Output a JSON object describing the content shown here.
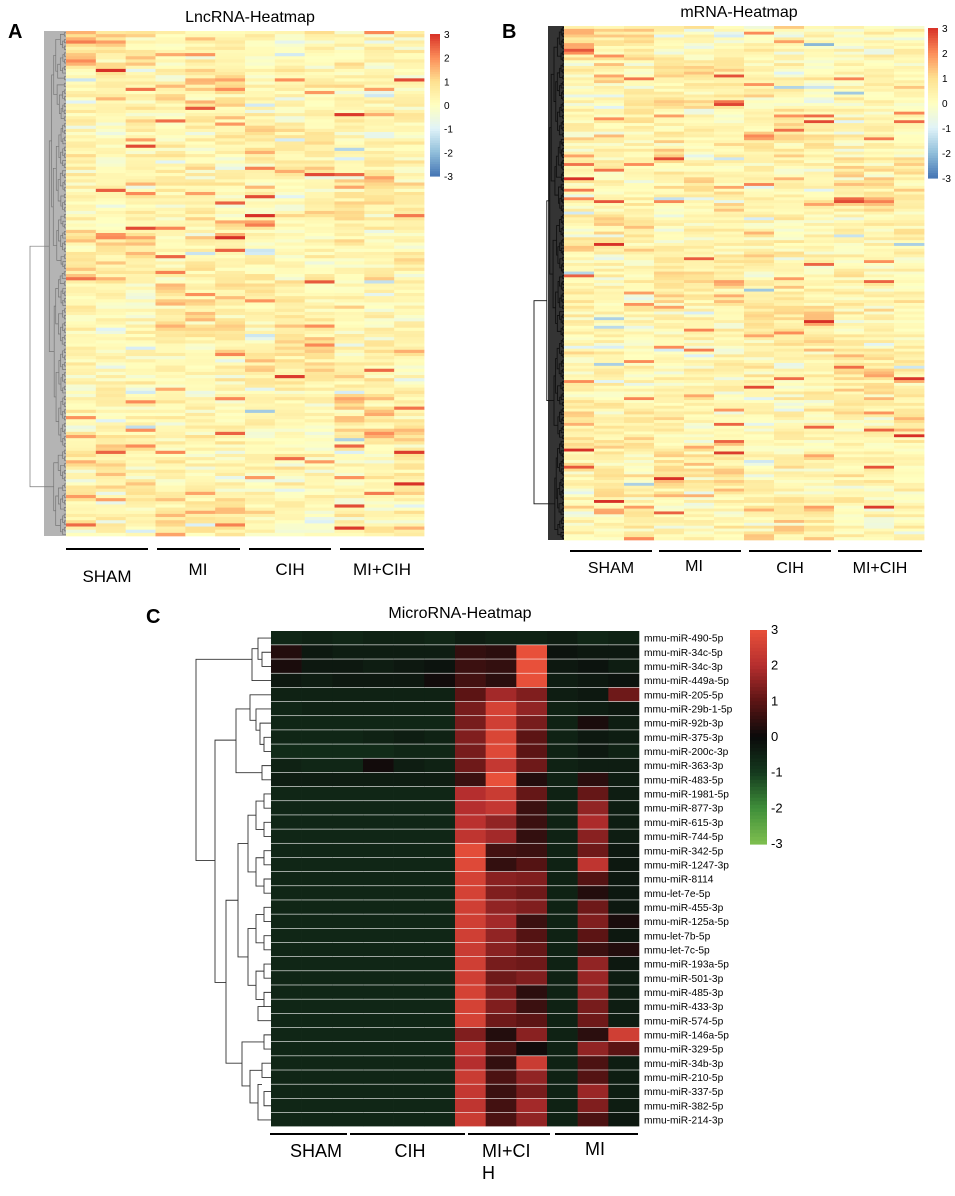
{
  "colors": {
    "diverging": [
      "#4575b4",
      "#91bfdb",
      "#e0f3f8",
      "#ffffbf",
      "#fee090",
      "#fc8d59",
      "#d73027"
    ],
    "microrna": [
      "#7fbf4f",
      "#3f8f3a",
      "#14391e",
      "#0a0a0a",
      "#5c1414",
      "#b52e2e",
      "#e8503a"
    ],
    "axis_line": "#000000",
    "dendrogram_gray": "#777777",
    "dendrogram_dark": "#111111"
  },
  "panels": {
    "A": {
      "letter": "A",
      "title": "LncRNA-Heatmap",
      "groups": [
        "SHAM",
        "MI",
        "CIH",
        "MI+CIH"
      ],
      "colorbar_ticks": [
        "3",
        "2",
        "1",
        "0",
        "-1",
        "-2",
        "-3"
      ]
    },
    "B": {
      "letter": "B",
      "title": "mRNA-Heatmap",
      "groups": [
        "SHAM",
        "MI",
        "CIH",
        "MI+CIH"
      ],
      "colorbar_ticks": [
        "3",
        "2",
        "1",
        "0",
        "-1",
        "-2",
        "-3"
      ]
    },
    "C": {
      "letter": "C",
      "title": "MicroRNA-Heatmap",
      "groups": [
        "SHAM",
        "CIH",
        "MI+CI\nH",
        "MI"
      ],
      "colorbar_ticks": [
        "3",
        "2",
        "1",
        "0",
        "-1",
        "-2",
        "-3"
      ]
    }
  },
  "chart_data": [
    {
      "type": "heatmap",
      "panel": "A",
      "title": "LncRNA-Heatmap",
      "columns": 12,
      "rows": 160,
      "column_groups": [
        {
          "name": "SHAM",
          "columns": 3
        },
        {
          "name": "MI",
          "columns": 3
        },
        {
          "name": "CIH",
          "columns": 3
        },
        {
          "name": "MI+CIH",
          "columns": 3
        }
      ],
      "color_range": [
        -3,
        3
      ],
      "row_labels": []
    },
    {
      "type": "heatmap",
      "panel": "B",
      "title": "mRNA-Heatmap",
      "columns": 12,
      "rows": 180,
      "column_groups": [
        {
          "name": "SHAM",
          "columns": 3
        },
        {
          "name": "MI",
          "columns": 3
        },
        {
          "name": "CIH",
          "columns": 3
        },
        {
          "name": "MI+CIH",
          "columns": 3
        }
      ],
      "color_range": [
        -3,
        3
      ],
      "row_labels": []
    },
    {
      "type": "heatmap",
      "panel": "C",
      "title": "MicroRNA-Heatmap",
      "color_range": [
        -3,
        3
      ],
      "column_groups": [
        {
          "name": "SHAM",
          "columns": 3
        },
        {
          "name": "CIH",
          "columns": 3
        },
        {
          "name": "MI+CIH",
          "columns": 3
        },
        {
          "name": "MI",
          "columns": 3
        }
      ],
      "row_labels": [
        "mmu-miR-490-5p",
        "mmu-miR-34c-5p",
        "mmu-miR-34c-3p",
        "mmu-miR-449a-5p",
        "mmu-miR-205-5p",
        "mmu-miR-29b-1-5p",
        "mmu-miR-92b-3p",
        "mmu-miR-375-3p",
        "mmu-miR-200c-3p",
        "mmu-miR-363-3p",
        "mmu-miR-483-5p",
        "mmu-miR-1981-5p",
        "mmu-miR-877-3p",
        "mmu-miR-615-3p",
        "mmu-miR-744-5p",
        "mmu-miR-342-5p",
        "mmu-miR-1247-3p",
        "mmu-miR-8114",
        "mmu-let-7e-5p",
        "mmu-miR-455-3p",
        "mmu-miR-125a-5p",
        "mmu-let-7b-5p",
        "mmu-let-7c-5p",
        "mmu-miR-193a-5p",
        "mmu-miR-501-3p",
        "mmu-miR-485-3p",
        "mmu-miR-433-3p",
        "mmu-miR-574-5p",
        "mmu-miR-146a-5p",
        "mmu-miR-329-5p",
        "mmu-miR-34b-3p",
        "mmu-miR-210-5p",
        "mmu-miR-337-5p",
        "mmu-miR-382-5p",
        "mmu-miR-214-3p"
      ],
      "values": [
        [
          -0.6,
          -0.5,
          -0.6,
          -0.5,
          -0.5,
          -0.6,
          -0.4,
          -0.5,
          -0.5,
          -0.4,
          -0.6,
          -0.5
        ],
        [
          0.3,
          -0.3,
          -0.4,
          -0.4,
          -0.4,
          -0.4,
          0.5,
          0.4,
          3.1,
          -0.2,
          -0.3,
          -0.3
        ],
        [
          0.2,
          -0.3,
          -0.3,
          -0.4,
          -0.3,
          -0.2,
          0.6,
          0.5,
          3.1,
          -0.3,
          -0.2,
          -0.4
        ],
        [
          -0.3,
          -0.4,
          -0.3,
          -0.3,
          -0.3,
          0.1,
          0.7,
          0.4,
          3.0,
          -0.4,
          -0.3,
          -0.2
        ],
        [
          -0.5,
          -0.5,
          -0.5,
          -0.5,
          -0.5,
          -0.5,
          1.0,
          1.8,
          1.4,
          -0.4,
          -0.3,
          1.2
        ],
        [
          -0.6,
          -0.5,
          -0.5,
          -0.5,
          -0.5,
          -0.5,
          1.3,
          2.6,
          1.6,
          -0.5,
          -0.4,
          -0.3
        ],
        [
          -0.6,
          -0.6,
          -0.6,
          -0.6,
          -0.6,
          -0.6,
          1.3,
          2.5,
          1.3,
          -0.5,
          0.2,
          -0.4
        ],
        [
          -0.6,
          -0.6,
          -0.6,
          -0.5,
          -0.4,
          -0.5,
          1.4,
          2.7,
          1.0,
          -0.5,
          -0.3,
          -0.4
        ],
        [
          -0.7,
          -0.7,
          -0.7,
          -0.7,
          -0.6,
          -0.6,
          1.3,
          2.8,
          1.0,
          -0.5,
          -0.3,
          -0.5
        ],
        [
          -0.5,
          -0.6,
          -0.6,
          0.1,
          -0.4,
          -0.5,
          1.2,
          2.3,
          1.2,
          -0.5,
          -0.4,
          -0.4
        ],
        [
          -0.4,
          -0.4,
          -0.4,
          -0.4,
          -0.4,
          -0.4,
          0.6,
          3.0,
          0.3,
          -0.5,
          0.4,
          -0.4
        ],
        [
          -0.6,
          -0.6,
          -0.6,
          -0.6,
          -0.6,
          -0.6,
          2.0,
          2.4,
          1.1,
          -0.5,
          1.1,
          -0.4
        ],
        [
          -0.6,
          -0.6,
          -0.6,
          -0.6,
          -0.6,
          -0.6,
          2.0,
          2.3,
          0.6,
          -0.5,
          1.6,
          -0.4
        ],
        [
          -0.6,
          -0.6,
          -0.6,
          -0.6,
          -0.6,
          -0.6,
          2.1,
          1.6,
          0.6,
          -0.5,
          1.9,
          -0.4
        ],
        [
          -0.6,
          -0.6,
          -0.6,
          -0.6,
          -0.6,
          -0.6,
          2.2,
          1.8,
          0.5,
          -0.5,
          1.5,
          -0.4
        ],
        [
          -0.6,
          -0.6,
          -0.6,
          -0.6,
          -0.6,
          -0.6,
          2.9,
          0.7,
          0.6,
          -0.5,
          1.2,
          -0.3
        ],
        [
          -0.6,
          -0.6,
          -0.6,
          -0.6,
          -0.6,
          -0.6,
          2.8,
          0.5,
          0.9,
          -0.5,
          2.2,
          -0.3
        ],
        [
          -0.6,
          -0.6,
          -0.6,
          -0.6,
          -0.6,
          -0.6,
          2.6,
          1.5,
          1.4,
          -0.5,
          0.9,
          -0.3
        ],
        [
          -0.6,
          -0.6,
          -0.6,
          -0.6,
          -0.6,
          -0.6,
          2.6,
          1.4,
          1.2,
          -0.5,
          0.3,
          -0.3
        ],
        [
          -0.6,
          -0.6,
          -0.6,
          -0.6,
          -0.6,
          -0.6,
          2.5,
          1.6,
          1.4,
          -0.5,
          1.2,
          -0.3
        ],
        [
          -0.6,
          -0.6,
          -0.6,
          -0.6,
          -0.6,
          -0.6,
          2.5,
          1.8,
          0.6,
          -0.5,
          1.4,
          0.2
        ],
        [
          -0.6,
          -0.6,
          -0.6,
          -0.6,
          -0.6,
          -0.6,
          2.5,
          1.6,
          0.9,
          -0.5,
          1.0,
          -0.3
        ],
        [
          -0.6,
          -0.6,
          -0.6,
          -0.6,
          -0.6,
          -0.6,
          2.4,
          1.5,
          1.1,
          -0.5,
          0.6,
          0.3
        ],
        [
          -0.6,
          -0.6,
          -0.6,
          -0.6,
          -0.6,
          -0.6,
          2.5,
          1.3,
          1.2,
          -0.5,
          1.6,
          -0.3
        ],
        [
          -0.6,
          -0.6,
          -0.6,
          -0.6,
          -0.6,
          -0.6,
          2.5,
          1.2,
          1.4,
          -0.5,
          1.7,
          -0.4
        ],
        [
          -0.6,
          -0.6,
          -0.6,
          -0.6,
          -0.6,
          -0.6,
          2.6,
          1.4,
          0.4,
          -0.5,
          1.6,
          -0.4
        ],
        [
          -0.6,
          -0.6,
          -0.6,
          -0.6,
          -0.6,
          -0.6,
          2.6,
          1.4,
          0.6,
          -0.5,
          1.3,
          -0.4
        ],
        [
          -0.6,
          -0.6,
          -0.6,
          -0.6,
          -0.6,
          -0.6,
          2.6,
          1.2,
          1.0,
          -0.5,
          1.2,
          -0.4
        ],
        [
          -0.6,
          -0.6,
          -0.6,
          -0.6,
          -0.6,
          -0.6,
          1.4,
          0.3,
          1.5,
          -0.5,
          0.4,
          2.5
        ],
        [
          -0.6,
          -0.6,
          -0.6,
          -0.6,
          -0.6,
          -0.6,
          2.2,
          0.8,
          0.1,
          -0.5,
          1.6,
          1.0
        ],
        [
          -0.6,
          -0.6,
          -0.6,
          -0.6,
          -0.6,
          -0.6,
          2.0,
          0.5,
          2.4,
          -0.5,
          0.8,
          -0.4
        ],
        [
          -0.6,
          -0.6,
          -0.6,
          -0.6,
          -0.6,
          -0.6,
          2.4,
          0.8,
          1.6,
          -0.5,
          0.9,
          -0.4
        ],
        [
          -0.6,
          -0.6,
          -0.6,
          -0.6,
          -0.6,
          -0.6,
          2.3,
          0.6,
          1.3,
          -0.5,
          1.7,
          -0.4
        ],
        [
          -0.6,
          -0.6,
          -0.6,
          -0.6,
          -0.6,
          -0.6,
          2.2,
          0.7,
          1.8,
          -0.5,
          1.4,
          -0.4
        ],
        [
          -0.6,
          -0.6,
          -0.6,
          -0.6,
          -0.6,
          -0.6,
          2.4,
          0.8,
          1.6,
          -0.5,
          0.8,
          -0.3
        ]
      ]
    }
  ]
}
